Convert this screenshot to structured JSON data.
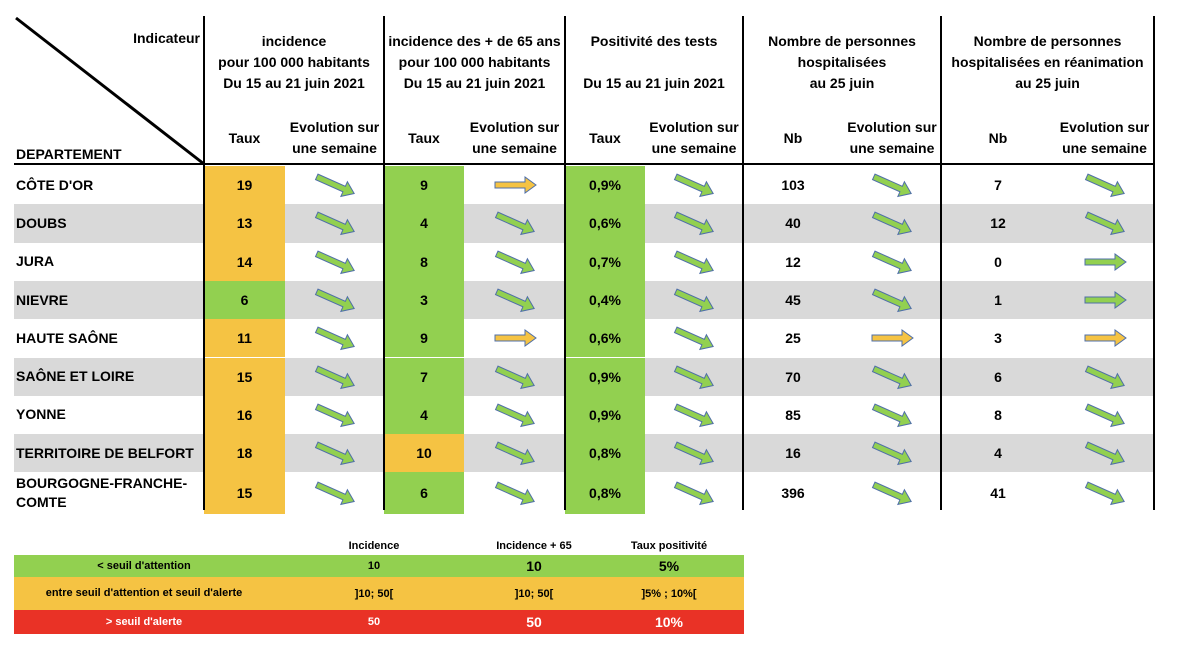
{
  "colors": {
    "green": "#92d050",
    "orange": "#f5c343",
    "red": "#e93226",
    "row_gray": "#d9d9d9",
    "arrow_green": "#92d050",
    "arrow_orange": "#f5c343"
  },
  "header": {
    "indicateur": "Indicateur",
    "departement": "DEPARTEMENT",
    "groups": [
      {
        "lines": [
          "incidence",
          "pour 100 000 habitants",
          "Du 15 au 21 juin 2021"
        ]
      },
      {
        "lines": [
          "incidence des + de 65 ans",
          "pour 100 000 habitants",
          "Du 15 au 21 juin 2021"
        ]
      },
      {
        "lines": [
          "Positivité des tests",
          "",
          "Du 15 au 21 juin 2021"
        ]
      },
      {
        "lines": [
          "Nombre de personnes",
          "hospitalisées",
          "au 25 juin"
        ]
      },
      {
        "lines": [
          "Nombre de personnes",
          "hospitalisées en réanimation",
          "au 25 juin"
        ]
      }
    ],
    "sub": [
      "Taux",
      "Evolution sur une semaine",
      "Taux",
      "Evolution sur une semaine",
      "Taux",
      "Evolution sur une semaine",
      "Nb",
      "Evolution sur une semaine",
      "Nb",
      "Evolution sur une semaine"
    ]
  },
  "rows": [
    {
      "name": "CÔTE D'OR",
      "inc": "19",
      "inc_color": "orange",
      "inc_evo": "down",
      "inc65": "9",
      "inc65_color": "green",
      "inc65_evo": "flat-orange",
      "pos": "0,9%",
      "pos_evo": "down",
      "hosp": "103",
      "hosp_evo": "down",
      "rea": "7",
      "rea_evo": "down"
    },
    {
      "name": "DOUBS",
      "inc": "13",
      "inc_color": "orange",
      "inc_evo": "down",
      "inc65": "4",
      "inc65_color": "green",
      "inc65_evo": "down",
      "pos": "0,6%",
      "pos_evo": "down",
      "hosp": "40",
      "hosp_evo": "down",
      "rea": "12",
      "rea_evo": "down"
    },
    {
      "name": "JURA",
      "inc": "14",
      "inc_color": "orange",
      "inc_evo": "down",
      "inc65": "8",
      "inc65_color": "green",
      "inc65_evo": "down",
      "pos": "0,7%",
      "pos_evo": "down",
      "hosp": "12",
      "hosp_evo": "down",
      "rea": "0",
      "rea_evo": "flat-green"
    },
    {
      "name": "NIEVRE",
      "inc": "6",
      "inc_color": "green",
      "inc_evo": "down",
      "inc65": "3",
      "inc65_color": "green",
      "inc65_evo": "down",
      "pos": "0,4%",
      "pos_evo": "down",
      "hosp": "45",
      "hosp_evo": "down",
      "rea": "1",
      "rea_evo": "flat-green"
    },
    {
      "name": "HAUTE SAÔNE",
      "inc": "11",
      "inc_color": "orange",
      "inc_evo": "down",
      "inc65": "9",
      "inc65_color": "green",
      "inc65_evo": "flat-orange",
      "pos": "0,6%",
      "pos_evo": "down",
      "hosp": "25",
      "hosp_evo": "flat-orange",
      "rea": "3",
      "rea_evo": "flat-orange"
    },
    {
      "name": "SAÔNE ET LOIRE",
      "inc": "15",
      "inc_color": "orange",
      "inc_evo": "down",
      "inc65": "7",
      "inc65_color": "green",
      "inc65_evo": "down",
      "pos": "0,9%",
      "pos_evo": "down",
      "hosp": "70",
      "hosp_evo": "down",
      "rea": "6",
      "rea_evo": "down"
    },
    {
      "name": "YONNE",
      "inc": "16",
      "inc_color": "orange",
      "inc_evo": "down",
      "inc65": "4",
      "inc65_color": "green",
      "inc65_evo": "down",
      "pos": "0,9%",
      "pos_evo": "down",
      "hosp": "85",
      "hosp_evo": "down",
      "rea": "8",
      "rea_evo": "down"
    },
    {
      "name": "TERRITOIRE DE BELFORT",
      "inc": "18",
      "inc_color": "orange",
      "inc_evo": "down",
      "inc65": "10",
      "inc65_color": "orange",
      "inc65_evo": "down",
      "pos": "0,8%",
      "pos_evo": "down",
      "hosp": "16",
      "hosp_evo": "down",
      "rea": "4",
      "rea_evo": "down"
    },
    {
      "name": "BOURGOGNE-FRANCHE-\nCOMTE",
      "inc": "15",
      "inc_color": "orange",
      "inc_evo": "down",
      "inc65": "6",
      "inc65_color": "green",
      "inc65_evo": "down",
      "pos": "0,8%",
      "pos_evo": "down",
      "hosp": "396",
      "hosp_evo": "down",
      "rea": "41",
      "rea_evo": "down"
    }
  ],
  "legend": {
    "headers": [
      "Incidence",
      "Incidence + 65",
      "Taux positivité"
    ],
    "rows": [
      {
        "label": "< seuil d'attention",
        "color": "green",
        "values": [
          "10",
          "10",
          "5%"
        ]
      },
      {
        "label": "entre seuil d'attention et seuil d'alerte",
        "color": "orange",
        "values": [
          "]10; 50[",
          "]10; 50[",
          "]5% ; 10%["
        ]
      },
      {
        "label": "> seuil d'alerte",
        "color": "red",
        "values": [
          "50",
          "50",
          "10%"
        ]
      }
    ]
  }
}
